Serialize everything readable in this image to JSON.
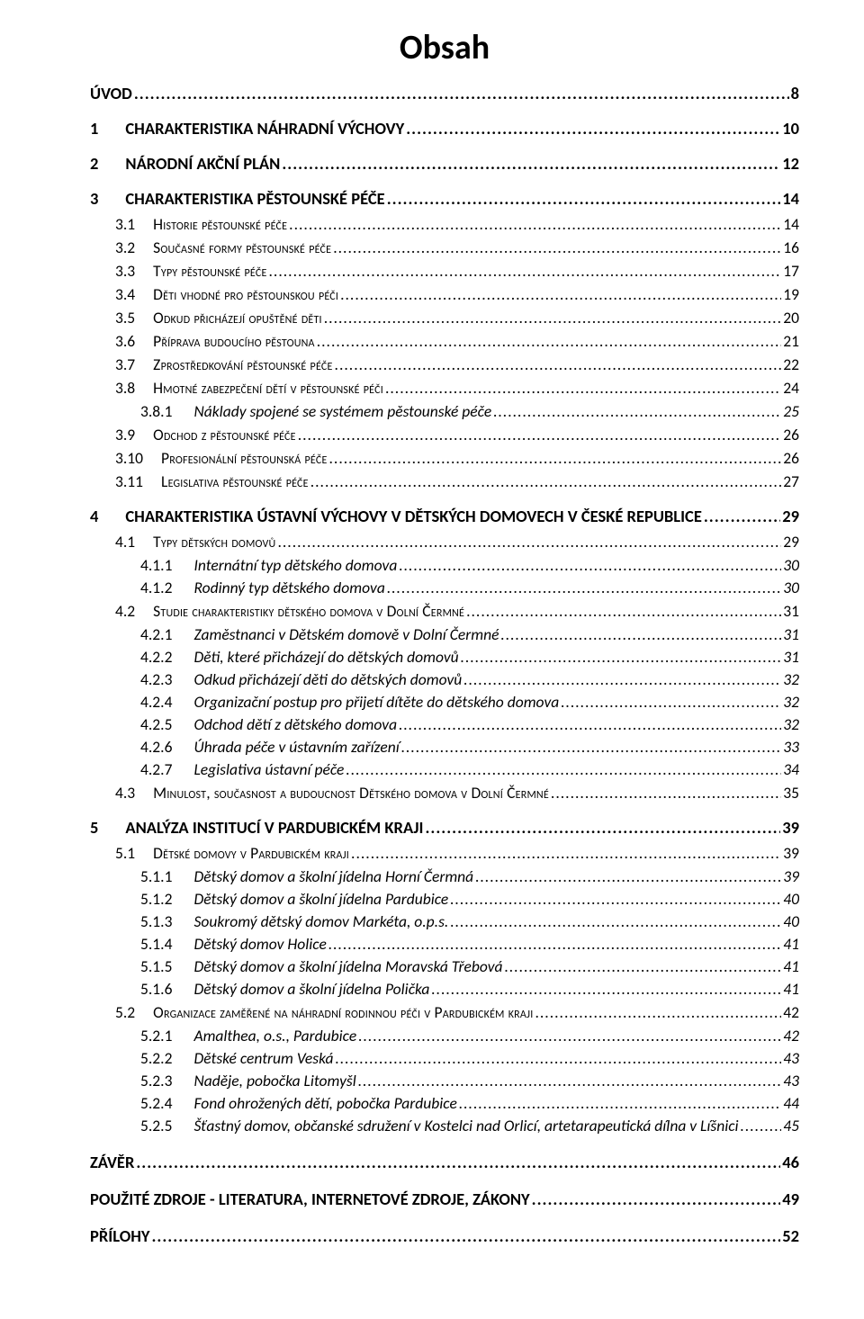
{
  "title": "Obsah",
  "colors": {
    "text": "#000000",
    "background": "#ffffff"
  },
  "typography": {
    "title_fontsize_pt": 28,
    "lvl1_fontsize_pt": 14,
    "lvl2_fontsize_pt": 13,
    "lvl3_fontsize_pt": 13,
    "font_family": "Calibri"
  },
  "entries": [
    {
      "level": "top",
      "label": "ÚVOD",
      "page": "8"
    },
    {
      "level": 1,
      "num": "1",
      "label": "CHARAKTERISTIKA NÁHRADNÍ VÝCHOVY",
      "page": "10"
    },
    {
      "level": 1,
      "num": "2",
      "label": "NÁRODNÍ AKČNÍ PLÁN",
      "page": "12"
    },
    {
      "level": 1,
      "num": "3",
      "label": "CHARAKTERISTIKA PĚSTOUNSKÉ PÉČE",
      "page": "14"
    },
    {
      "level": 2,
      "num": "3.1",
      "label": "Historie pěstounské péče",
      "page": "14"
    },
    {
      "level": 2,
      "num": "3.2",
      "label": "Současné formy pěstounské péče",
      "page": "16"
    },
    {
      "level": 2,
      "num": "3.3",
      "label": "Typy pěstounské péče",
      "page": "17"
    },
    {
      "level": 2,
      "num": "3.4",
      "label": "Děti vhodné pro pěstounskou péči",
      "page": "19"
    },
    {
      "level": 2,
      "num": "3.5",
      "label": "Odkud přicházejí opuštěné děti",
      "page": "20"
    },
    {
      "level": 2,
      "num": "3.6",
      "label": "Příprava budoucího pěstouna",
      "page": "21"
    },
    {
      "level": 2,
      "num": "3.7",
      "label": "Zprostředkování pěstounské péče",
      "page": "22"
    },
    {
      "level": 2,
      "num": "3.8",
      "label": "Hmotné zabezpečení dětí v pěstounské péči",
      "page": "24"
    },
    {
      "level": 3,
      "num": "3.8.1",
      "label": "Náklady spojené se systémem pěstounské péče",
      "page": "25"
    },
    {
      "level": 2,
      "num": "3.9",
      "label": "Odchod z pěstounské péče",
      "page": "26"
    },
    {
      "level": 2,
      "num": "3.10",
      "label": "Profesionální pěstounská péče",
      "page": "26"
    },
    {
      "level": 2,
      "num": "3.11",
      "label": "Legislativa pěstounské péče",
      "page": "27"
    },
    {
      "level": 1,
      "num": "4",
      "label": "CHARAKTERISTIKA ÚSTAVNÍ VÝCHOVY V DĚTSKÝCH DOMOVECH V ČESKÉ REPUBLICE",
      "page": "29"
    },
    {
      "level": 2,
      "num": "4.1",
      "label": "Typy dětských domovů",
      "page": "29"
    },
    {
      "level": 3,
      "num": "4.1.1",
      "label": "Internátní typ dětského domova",
      "page": "30"
    },
    {
      "level": 3,
      "num": "4.1.2",
      "label": "Rodinný typ dětského domova",
      "page": "30"
    },
    {
      "level": 2,
      "num": "4.2",
      "label": "Studie charakteristiky dětského domova v Dolní Čermné",
      "page": "31"
    },
    {
      "level": 3,
      "num": "4.2.1",
      "label": "Zaměstnanci v Dětském domově v Dolní Čermné",
      "page": "31"
    },
    {
      "level": 3,
      "num": "4.2.2",
      "label": "Děti, které přicházejí do dětských domovů",
      "page": "31"
    },
    {
      "level": 3,
      "num": "4.2.3",
      "label": "Odkud přicházejí děti do dětských domovů",
      "page": "32"
    },
    {
      "level": 3,
      "num": "4.2.4",
      "label": "Organizační postup pro přijetí dítěte do dětského domova",
      "page": "32"
    },
    {
      "level": 3,
      "num": "4.2.5",
      "label": "Odchod dětí z dětského domova",
      "page": "32"
    },
    {
      "level": 3,
      "num": "4.2.6",
      "label": "Úhrada péče v ústavním zařízení",
      "page": "33"
    },
    {
      "level": 3,
      "num": "4.2.7",
      "label": "Legislativa ústavní péče",
      "page": "34"
    },
    {
      "level": 2,
      "num": "4.3",
      "label": "Minulost, současnost a budoucnost Dětského domova v Dolní Čermné",
      "page": "35"
    },
    {
      "level": 1,
      "num": "5",
      "label": "ANALÝZA INSTITUCÍ V PARDUBICKÉM KRAJI",
      "page": "39"
    },
    {
      "level": 2,
      "num": "5.1",
      "label": "Dětské domovy v Pardubickém kraji",
      "page": "39"
    },
    {
      "level": 3,
      "num": "5.1.1",
      "label": "Dětský domov a školní jídelna Horní Čermná",
      "page": "39"
    },
    {
      "level": 3,
      "num": "5.1.2",
      "label": "Dětský domov a školní jídelna Pardubice",
      "page": "40"
    },
    {
      "level": 3,
      "num": "5.1.3",
      "label": "Soukromý dětský domov Markéta, o.p.s.",
      "page": "40"
    },
    {
      "level": 3,
      "num": "5.1.4",
      "label": "Dětský domov Holice",
      "page": "41"
    },
    {
      "level": 3,
      "num": "5.1.5",
      "label": "Dětský domov a školní jídelna Moravská Třebová",
      "page": "41"
    },
    {
      "level": 3,
      "num": "5.1.6",
      "label": "Dětský domov a školní jídelna Polička",
      "page": "41"
    },
    {
      "level": 2,
      "num": "5.2",
      "label": "Organizace zaměřené na náhradní rodinnou péči v Pardubickém kraji",
      "page": "42"
    },
    {
      "level": 3,
      "num": "5.2.1",
      "label": "Amalthea, o.s., Pardubice",
      "page": "42"
    },
    {
      "level": 3,
      "num": "5.2.2",
      "label": "Dětské centrum Veská",
      "page": "43"
    },
    {
      "level": 3,
      "num": "5.2.3",
      "label": "Naděje, pobočka Litomyšl",
      "page": "43"
    },
    {
      "level": 3,
      "num": "5.2.4",
      "label": "Fond ohrožených dětí, pobočka Pardubice",
      "page": "44"
    },
    {
      "level": 3,
      "num": "5.2.5",
      "label": "Šťastný domov, občanské sdružení v Kostelci nad Orlicí, artetarapeutická dílna v Líšnici",
      "page": "45"
    },
    {
      "level": "end",
      "label": "ZÁVĚR",
      "page": "46"
    },
    {
      "level": "end",
      "label": "POUŽITÉ ZDROJE - LITERATURA, INTERNETOVÉ ZDROJE, ZÁKONY",
      "page": "49"
    },
    {
      "level": "end",
      "label": "PŘÍLOHY",
      "page": "52"
    }
  ]
}
